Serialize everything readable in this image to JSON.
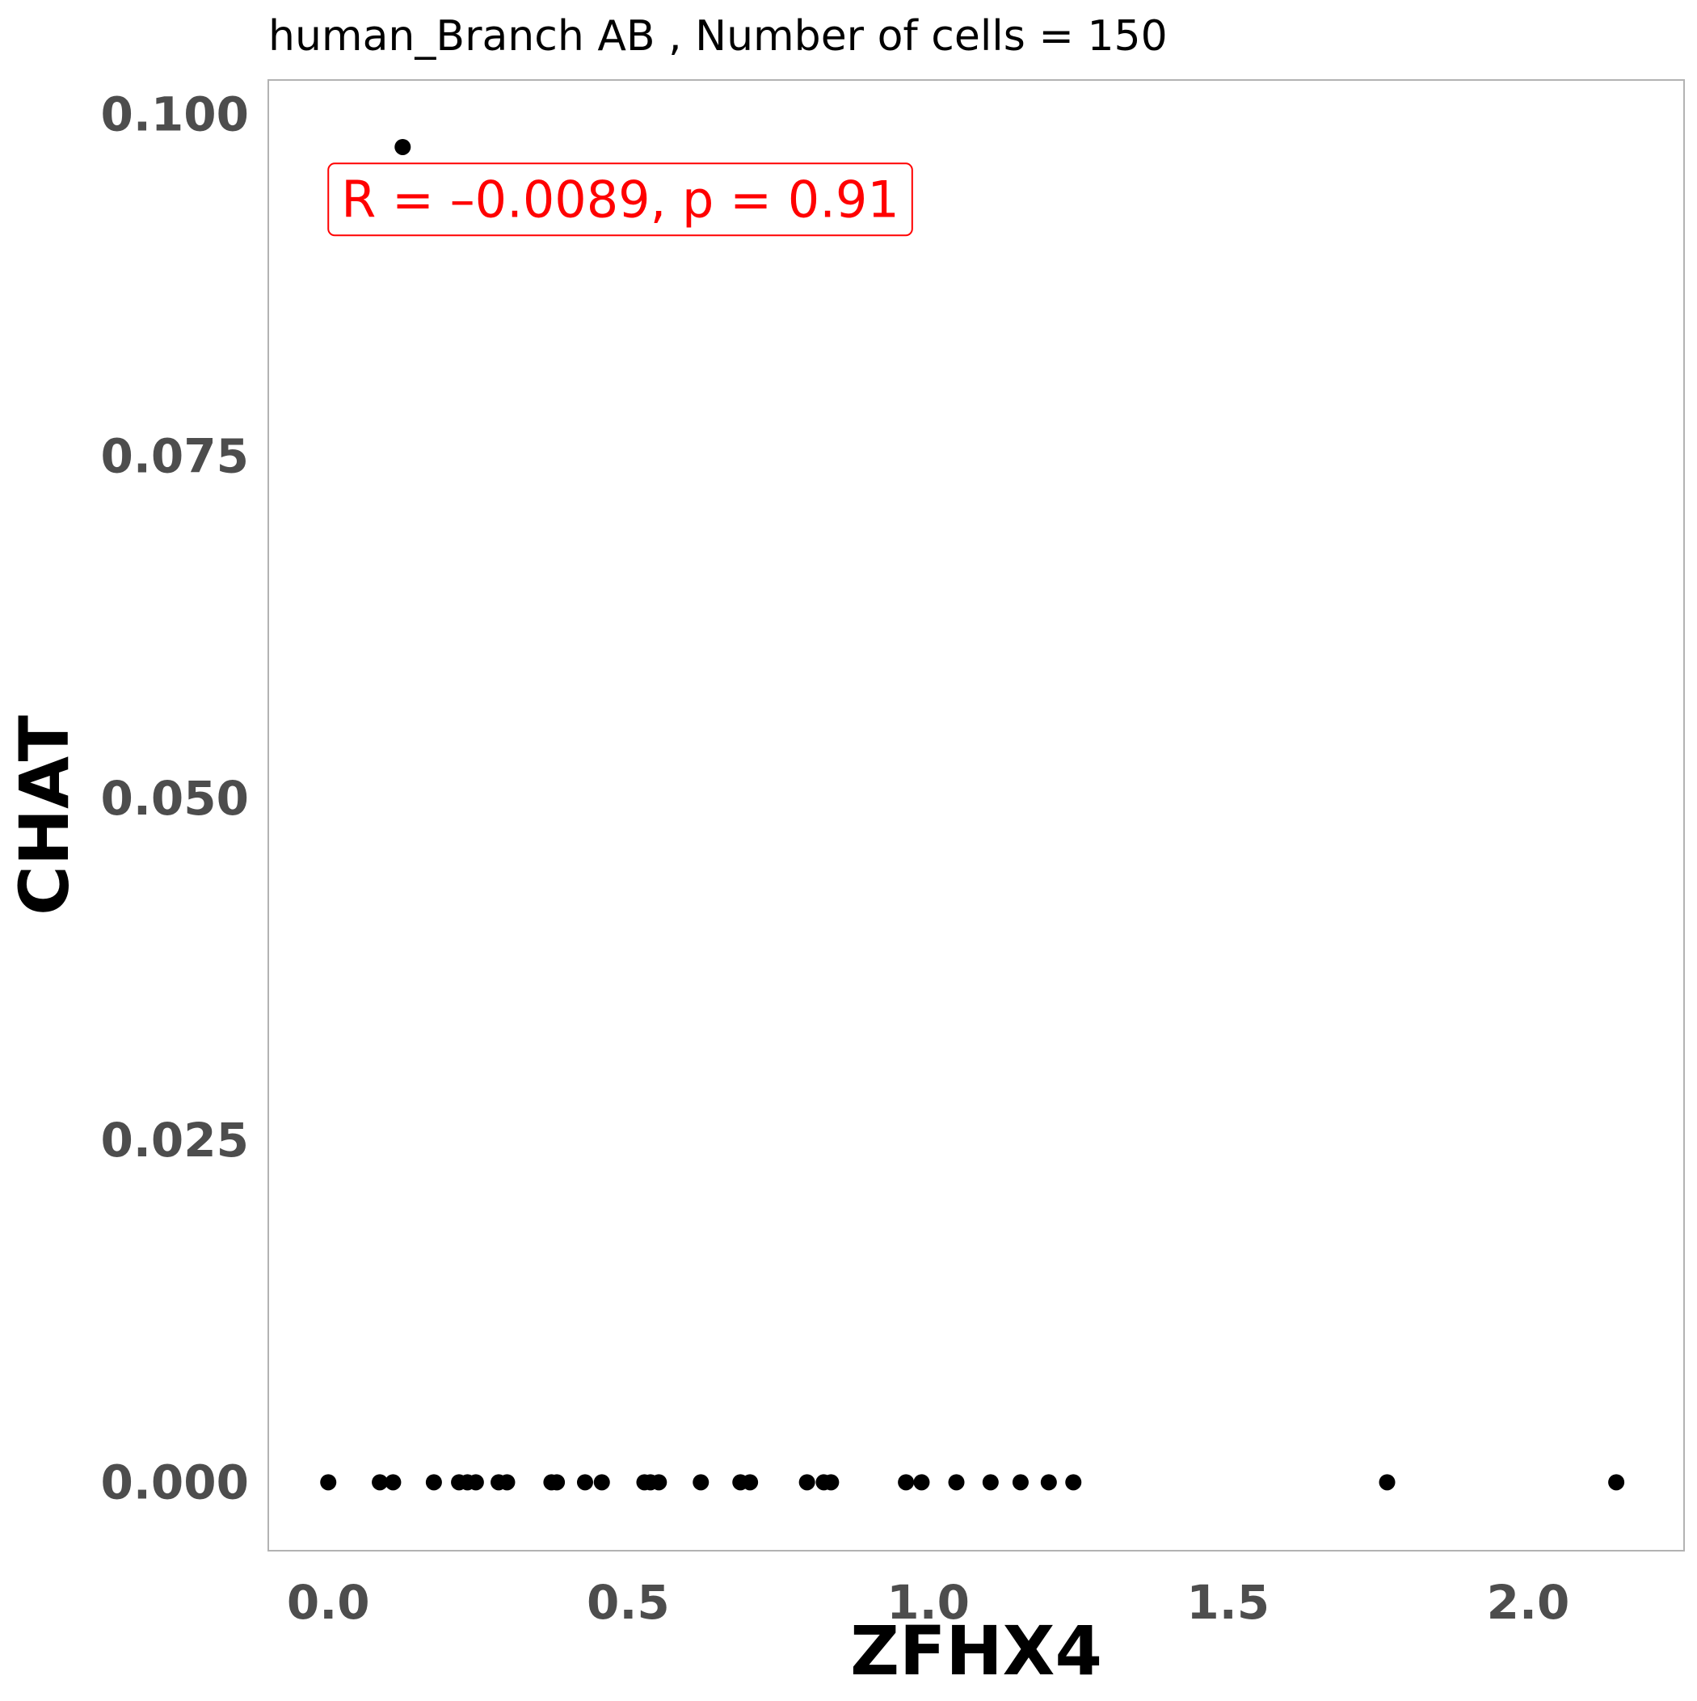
{
  "chart_data": {
    "type": "scatter",
    "title": "human_Branch AB , Number of cells =  150",
    "xlabel": "ZFHX4",
    "ylabel": "CHAT",
    "xlim": [
      -0.1,
      2.26
    ],
    "ylim": [
      -0.005,
      0.1025
    ],
    "x_ticks": [
      0.0,
      0.5,
      1.0,
      1.5,
      2.0
    ],
    "x_tick_labels": [
      "0.0",
      "0.5",
      "1.0",
      "1.5",
      "2.0"
    ],
    "y_ticks": [
      0.0,
      0.025,
      0.05,
      0.075,
      0.1
    ],
    "y_tick_labels": [
      "0.000",
      "0.025",
      "0.050",
      "0.075",
      "0.100"
    ],
    "grid": false,
    "annotation": {
      "text": "R = –0.0089, p = 0.91",
      "color": "#ff0000",
      "x": 0.0,
      "y": 0.0925
    },
    "point_color": "#000000",
    "points": [
      {
        "x": 0.124,
        "y": 0.0976
      },
      {
        "x": 0.0,
        "y": 0.0
      },
      {
        "x": 0.086,
        "y": 0.0
      },
      {
        "x": 0.108,
        "y": 0.0
      },
      {
        "x": 0.176,
        "y": 0.0
      },
      {
        "x": 0.218,
        "y": 0.0
      },
      {
        "x": 0.232,
        "y": 0.0
      },
      {
        "x": 0.246,
        "y": 0.0
      },
      {
        "x": 0.284,
        "y": 0.0
      },
      {
        "x": 0.298,
        "y": 0.0
      },
      {
        "x": 0.372,
        "y": 0.0
      },
      {
        "x": 0.381,
        "y": 0.0
      },
      {
        "x": 0.428,
        "y": 0.0
      },
      {
        "x": 0.456,
        "y": 0.0
      },
      {
        "x": 0.527,
        "y": 0.0
      },
      {
        "x": 0.537,
        "y": 0.0
      },
      {
        "x": 0.551,
        "y": 0.0
      },
      {
        "x": 0.621,
        "y": 0.0
      },
      {
        "x": 0.687,
        "y": 0.0
      },
      {
        "x": 0.703,
        "y": 0.0
      },
      {
        "x": 0.798,
        "y": 0.0
      },
      {
        "x": 0.826,
        "y": 0.0
      },
      {
        "x": 0.838,
        "y": 0.0
      },
      {
        "x": 0.963,
        "y": 0.0
      },
      {
        "x": 0.989,
        "y": 0.0
      },
      {
        "x": 1.047,
        "y": 0.0
      },
      {
        "x": 1.104,
        "y": 0.0
      },
      {
        "x": 1.154,
        "y": 0.0
      },
      {
        "x": 1.201,
        "y": 0.0
      },
      {
        "x": 1.242,
        "y": 0.0
      },
      {
        "x": 1.765,
        "y": 0.0
      },
      {
        "x": 2.147,
        "y": 0.0
      }
    ]
  }
}
